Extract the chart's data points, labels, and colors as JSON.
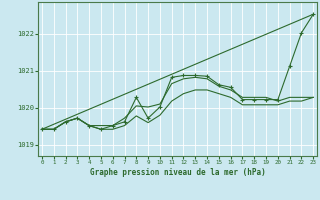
{
  "title": "Graphe pression niveau de la mer (hPa)",
  "bg_color": "#cbe8f0",
  "grid_color": "#ffffff",
  "line_color": "#2d6a2d",
  "x_ticks": [
    0,
    1,
    2,
    3,
    4,
    5,
    6,
    7,
    8,
    9,
    10,
    11,
    12,
    13,
    14,
    15,
    16,
    17,
    18,
    19,
    20,
    21,
    22,
    23
  ],
  "y_ticks": [
    1019,
    1020,
    1021,
    1022
  ],
  "ylim": [
    1018.7,
    1022.85
  ],
  "xlim": [
    -0.3,
    23.3
  ],
  "hours": [
    0,
    1,
    2,
    3,
    4,
    5,
    6,
    7,
    8,
    9,
    10,
    11,
    12,
    13,
    14,
    15,
    16,
    17,
    18,
    19,
    20,
    21,
    22,
    23
  ],
  "main_y": [
    1019.42,
    1019.42,
    1019.62,
    1019.72,
    1019.52,
    1019.42,
    1019.52,
    1019.62,
    1020.28,
    1019.72,
    1020.02,
    1020.82,
    1020.87,
    1020.87,
    1020.85,
    1020.62,
    1020.55,
    1020.22,
    1020.22,
    1020.22,
    1020.22,
    1021.12,
    1022.02,
    1022.52
  ],
  "upper_y": [
    1019.42,
    1019.42,
    1019.62,
    1019.72,
    1019.52,
    1019.52,
    1019.52,
    1019.72,
    1020.05,
    1020.02,
    1020.1,
    1020.65,
    1020.78,
    1020.82,
    1020.78,
    1020.58,
    1020.48,
    1020.28,
    1020.28,
    1020.28,
    1020.18,
    1020.28,
    1020.28,
    1020.28
  ],
  "lower_y": [
    1019.42,
    1019.42,
    1019.62,
    1019.72,
    1019.52,
    1019.42,
    1019.42,
    1019.52,
    1019.78,
    1019.6,
    1019.8,
    1020.18,
    1020.38,
    1020.48,
    1020.48,
    1020.38,
    1020.28,
    1020.08,
    1020.08,
    1020.08,
    1020.08,
    1020.18,
    1020.18,
    1020.28
  ],
  "trend_x": [
    0,
    23
  ],
  "trend_y": [
    1019.42,
    1022.52
  ]
}
